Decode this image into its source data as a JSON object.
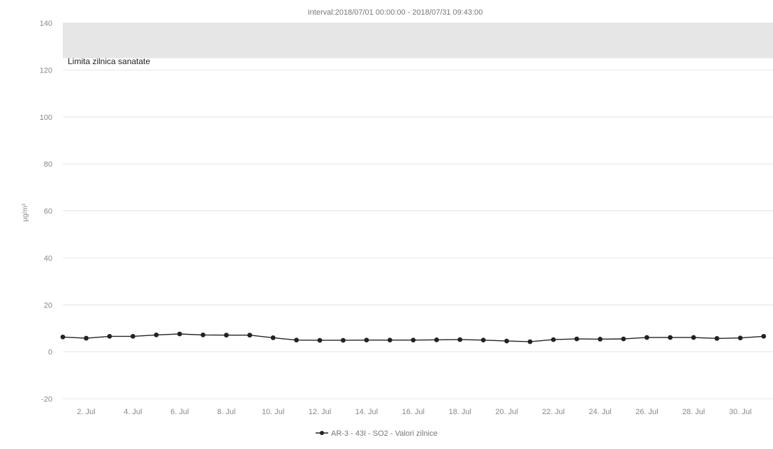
{
  "chart_data": {
    "type": "line",
    "title": "Interval:2018/07/01 00:00:00 - 2018/07/31 09:43:00",
    "ylabel": "µg/m³",
    "xlabel": "",
    "ylim": [
      -20,
      140
    ],
    "yticks": [
      -20,
      0,
      20,
      40,
      60,
      80,
      100,
      120,
      140
    ],
    "xlim": [
      1,
      31.4
    ],
    "xticks": [
      {
        "day": 2,
        "label": "2. Jul"
      },
      {
        "day": 4,
        "label": "4. Jul"
      },
      {
        "day": 6,
        "label": "6. Jul"
      },
      {
        "day": 8,
        "label": "8. Jul"
      },
      {
        "day": 10,
        "label": "10. Jul"
      },
      {
        "day": 12,
        "label": "12. Jul"
      },
      {
        "day": 14,
        "label": "14. Jul"
      },
      {
        "day": 16,
        "label": "16. Jul"
      },
      {
        "day": 18,
        "label": "18. Jul"
      },
      {
        "day": 20,
        "label": "20. Jul"
      },
      {
        "day": 22,
        "label": "22. Jul"
      },
      {
        "day": 24,
        "label": "24. Jul"
      },
      {
        "day": 26,
        "label": "26. Jul"
      },
      {
        "day": 28,
        "label": "28. Jul"
      },
      {
        "day": 30,
        "label": "30. Jul"
      }
    ],
    "band": {
      "from": 125,
      "to": 140,
      "label": "Limita zilnica sanatate",
      "color": "#e6e6e6"
    },
    "grid": true,
    "legend_position": "bottom-center",
    "series": [
      {
        "name": "AR-3 - 43I - SO2 - Valori zilnice",
        "color": "#222222",
        "x": [
          1,
          2,
          3,
          4,
          5,
          6,
          7,
          8,
          9,
          10,
          11,
          12,
          13,
          14,
          15,
          16,
          17,
          18,
          19,
          20,
          21,
          22,
          23,
          24,
          25,
          26,
          27,
          28,
          29,
          30,
          31
        ],
        "values": [
          6.3,
          5.8,
          6.6,
          6.6,
          7.2,
          7.6,
          7.2,
          7.1,
          7.1,
          6.0,
          5.0,
          4.9,
          4.9,
          5.0,
          5.0,
          5.0,
          5.1,
          5.2,
          5.0,
          4.6,
          4.3,
          5.2,
          5.5,
          5.4,
          5.5,
          6.1,
          6.1,
          6.1,
          5.7,
          5.9,
          6.6
        ]
      }
    ]
  }
}
